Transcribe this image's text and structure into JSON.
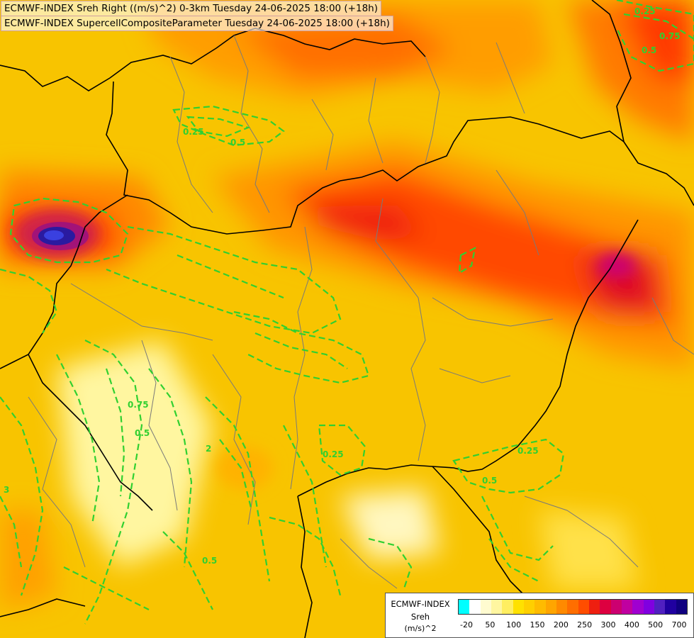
{
  "titles": {
    "line1": "ECMWF-INDEX Sreh Right ((m/s)^2) 0-3km Tuesday 24-06-2025 18:00 (+18h)",
    "line2": "ECMWF-INDEX SupercellCompositeParameter Tuesday 24-06-2025 18:00 (+18h)"
  },
  "legend": {
    "product": "ECMWF-INDEX",
    "variable": "Sreh",
    "unit": "(m/s)^2",
    "colors": [
      "#00ffff",
      "#ffffff",
      "#fffbd0",
      "#fff6a0",
      "#ffee60",
      "#ffe100",
      "#ffcf00",
      "#ffbb00",
      "#ffa500",
      "#ff8a00",
      "#ff6e00",
      "#ff4d00",
      "#ee1f10",
      "#dd0040",
      "#cc0070",
      "#c000a0",
      "#a000d0",
      "#8000e0",
      "#5020c0",
      "#2000a0",
      "#100080"
    ],
    "ticks": [
      "-20",
      "50",
      "100",
      "150",
      "200",
      "250",
      "300",
      "400",
      "500",
      "700"
    ]
  },
  "contours": {
    "color": "#30d030",
    "labels": [
      {
        "text": "0.25"
      },
      {
        "text": "0.5"
      },
      {
        "text": "0.25"
      },
      {
        "text": "0.5"
      },
      {
        "text": "0.75"
      },
      {
        "text": "0.5"
      },
      {
        "text": "0.25"
      },
      {
        "text": "0.5"
      },
      {
        "text": "2"
      },
      {
        "text": "3"
      },
      {
        "text": "0.5"
      },
      {
        "text": "0.25"
      },
      {
        "text": "0.75"
      }
    ]
  }
}
